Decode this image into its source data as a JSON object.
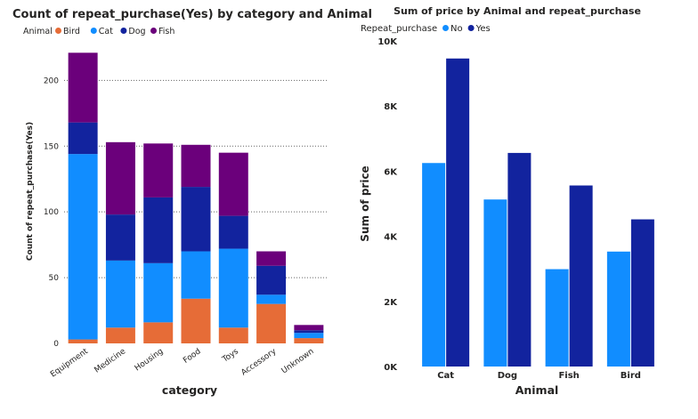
{
  "colors": {
    "bird": "#E66C37",
    "cat": "#118DFF",
    "dog": "#12239E",
    "fish": "#6B007B",
    "no": "#118DFF",
    "yes": "#12239E",
    "gridline": "#666666",
    "axis_text": "#252423"
  },
  "chart_data": [
    {
      "type": "bar",
      "stacked": true,
      "title": "Count of repeat_purchase(Yes) by category and Animal",
      "legend_title": "Animal",
      "legend_position": "top-left",
      "xlabel": "category",
      "ylabel": "Count of repeat_purchase(Yes)",
      "ylim": [
        0,
        230
      ],
      "yticks": [
        0,
        50,
        100,
        150,
        200
      ],
      "grid": true,
      "categories": [
        "Equipment",
        "Medicine",
        "Housing",
        "Food",
        "Toys",
        "Accessory",
        "Unknown"
      ],
      "series": [
        {
          "name": "Bird",
          "color_key": "bird",
          "values": [
            3,
            12,
            16,
            34,
            12,
            30,
            4
          ]
        },
        {
          "name": "Cat",
          "color_key": "cat",
          "values": [
            141,
            51,
            45,
            36,
            60,
            7,
            4
          ]
        },
        {
          "name": "Dog",
          "color_key": "dog",
          "values": [
            24,
            35,
            50,
            49,
            25,
            22,
            2
          ]
        },
        {
          "name": "Fish",
          "color_key": "fish",
          "values": [
            53,
            55,
            41,
            32,
            48,
            11,
            4
          ]
        }
      ]
    },
    {
      "type": "bar",
      "stacked": false,
      "title": "Sum of price by Animal and repeat_purchase",
      "legend_title": "Repeat_purchase",
      "legend_position": "top-left",
      "xlabel": "Animal",
      "ylabel": "Sum of price",
      "ylim": [
        0,
        10000
      ],
      "yticks": [
        0,
        2000,
        4000,
        6000,
        8000,
        10000
      ],
      "ytick_labels": [
        "0K",
        "2K",
        "4K",
        "6K",
        "8K",
        "10K"
      ],
      "grid": false,
      "categories": [
        "Cat",
        "Dog",
        "Fish",
        "Bird"
      ],
      "series": [
        {
          "name": "No",
          "color_key": "no",
          "values": [
            6250,
            5130,
            2990,
            3530
          ]
        },
        {
          "name": "Yes",
          "color_key": "yes",
          "values": [
            9460,
            6560,
            5560,
            4520
          ]
        }
      ]
    }
  ]
}
